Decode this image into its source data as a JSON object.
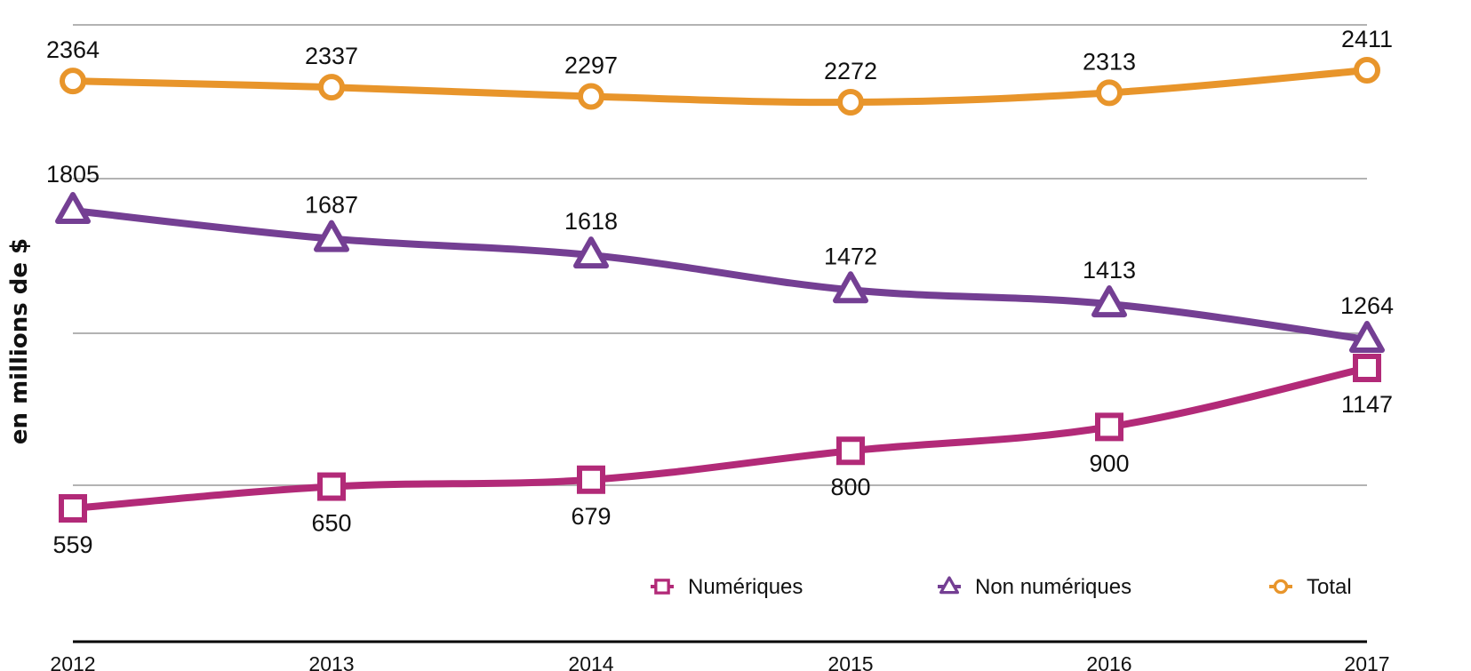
{
  "chart_data": {
    "type": "line",
    "categories": [
      "2012",
      "2013",
      "2014",
      "2015",
      "2016",
      "2017"
    ],
    "ylabel": "en millions de $",
    "xlabel": "",
    "series": [
      {
        "name": "Numériques",
        "key": "numeriques",
        "color": "#b22a78",
        "marker": "square",
        "values": [
          559,
          650,
          679,
          800,
          900,
          1147
        ],
        "labels": [
          "559",
          "650",
          "679",
          "800",
          "900",
          "1147"
        ]
      },
      {
        "name": "Non numériques",
        "key": "non-numeriques",
        "color": "#743f93",
        "marker": "triangle",
        "values": [
          1805,
          1687,
          1618,
          1472,
          1413,
          1264
        ],
        "labels": [
          "1805",
          "1687",
          "1618",
          "1472",
          "1413",
          "1264"
        ]
      },
      {
        "name": "Total",
        "key": "total",
        "color": "#e8952b",
        "marker": "circle",
        "values": [
          2364,
          2337,
          2297,
          2272,
          2313,
          2411
        ],
        "labels": [
          "2364",
          "2337",
          "2297",
          "2272",
          "2313",
          "2411"
        ]
      }
    ],
    "grid": true,
    "legend_position": "bottom-right"
  }
}
